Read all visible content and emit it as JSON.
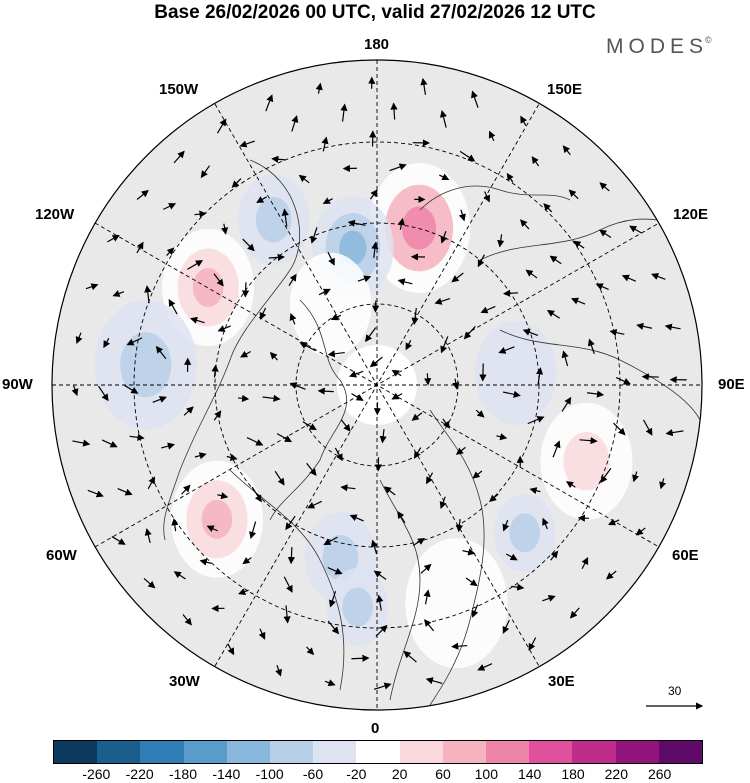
{
  "title": "Base 26/02/2026 00 UTC, valid 27/02/2026 12 UTC",
  "brand": {
    "name": "MODES",
    "mark": "©"
  },
  "longitude_labels": {
    "top": "180",
    "bottom": "0",
    "left": "90W",
    "right": "90E",
    "upper_left_1": "150W",
    "upper_left_2": "120W",
    "upper_right_1": "150E",
    "upper_right_2": "120E",
    "lower_left_1": "60W",
    "lower_left_2": "30W",
    "lower_right_1": "60E",
    "lower_right_2": "30E"
  },
  "reference_vector": {
    "label": "30"
  },
  "colorbar": {
    "colors": [
      "#0d3a5c",
      "#1a5e8e",
      "#2f7db5",
      "#5a9ccb",
      "#89b8dc",
      "#b8cfe8",
      "#dde3f1",
      "#ffffff",
      "#f9d9dd",
      "#f5b2bf",
      "#ee84a8",
      "#e0509c",
      "#c02c8b",
      "#92137c",
      "#5f0a69"
    ],
    "ticks": [
      "-260",
      "-220",
      "-180",
      "-140",
      "-100",
      "-60",
      "-20",
      "20",
      "60",
      "100",
      "140",
      "180",
      "220",
      "260"
    ]
  },
  "anomaly_blobs": [
    {
      "value": 120,
      "center_lat": 55,
      "center_lon": 165,
      "extent_deg": 10
    },
    {
      "value": -100,
      "center_lat": 60,
      "center_lon": -170,
      "extent_deg": 8
    },
    {
      "value": -80,
      "center_lat": 48,
      "center_lon": -148,
      "extent_deg": 7
    },
    {
      "value": 100,
      "center_lat": 48,
      "center_lon": -120,
      "extent_deg": 9
    },
    {
      "value": -60,
      "center_lat": 40,
      "center_lon": -95,
      "extent_deg": 10
    },
    {
      "value": 100,
      "center_lat": 45,
      "center_lon": -50,
      "extent_deg": 9
    },
    {
      "value": -80,
      "center_lat": 52,
      "center_lon": -12,
      "extent_deg": 7
    },
    {
      "value": -60,
      "center_lat": 42,
      "center_lon": -5,
      "extent_deg": 6
    },
    {
      "value": -60,
      "center_lat": 45,
      "center_lon": 45,
      "extent_deg": 6
    },
    {
      "value": 60,
      "center_lat": 42,
      "center_lon": 70,
      "extent_deg": 9
    },
    {
      "value": -40,
      "center_lat": 60,
      "center_lon": 95,
      "extent_deg": 8
    },
    {
      "value": 40,
      "center_lat": 40,
      "center_lon": 20,
      "extent_deg": 10
    },
    {
      "value": 40,
      "center_lat": 70,
      "center_lon": -150,
      "extent_deg": 8
    }
  ]
}
